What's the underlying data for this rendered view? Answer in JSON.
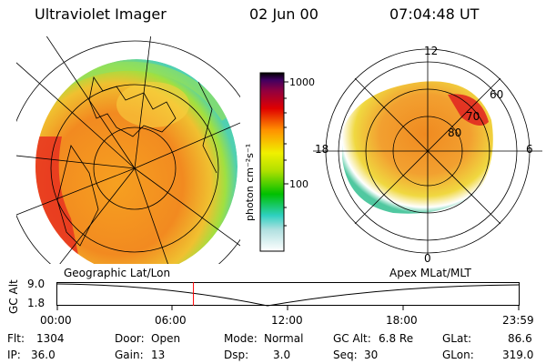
{
  "header": {
    "instrument": "Ultraviolet Imager",
    "date": "02 Jun 00",
    "time": "07:04:48 UT"
  },
  "colorbar": {
    "label": "photon cm⁻²s⁻¹",
    "ticks": [
      "1000",
      "100"
    ]
  },
  "polar_plot": {
    "labels": {
      "top": "12",
      "left": "18",
      "right": "6",
      "bottom": "0"
    },
    "lat_labels": [
      "60",
      "70",
      "80"
    ]
  },
  "timeline": {
    "left_label": "Geographic Lat/Lon",
    "right_label": "Apex MLat/MLT",
    "axis_label": "GC Alt",
    "y_ticks": [
      "9.0",
      "1.8"
    ],
    "x_ticks": [
      "00:00",
      "06:00",
      "12:00",
      "18:00",
      "23:59"
    ],
    "current_time_hours": 7.08
  },
  "status": {
    "flt_label": "Flt:",
    "flt_value": "1304",
    "ip_label": "IP:",
    "ip_value": "36.0",
    "door_label": "Door:",
    "door_value": "Open",
    "gain_label": "Gain:",
    "gain_value": "13",
    "mode_label": "Mode:",
    "mode_value": "Normal",
    "dsp_label": "Dsp:",
    "dsp_value": "3.0",
    "gcalt_label": "GC Alt:",
    "gcalt_value": "6.8 Re",
    "seq_label": "Seq:",
    "seq_value": "30",
    "glat_label": "GLat:",
    "glat_value": "86.6",
    "glon_label": "GLon:",
    "glon_value": "319.0"
  },
  "colors": {
    "marker": "#ff0000",
    "colormap": [
      "#ffffff",
      "#2fd0c0",
      "#00c000",
      "#f0f000",
      "#ff9000",
      "#e00000",
      "#700050",
      "#000000"
    ]
  }
}
